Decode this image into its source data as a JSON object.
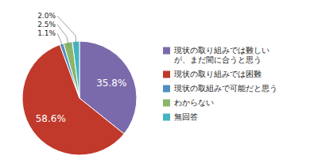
{
  "chart_data": {
    "type": "pie",
    "categories": [
      "現状の取り組みでは難しい\nが、まだ間に合うと思う",
      "現状の取り組みでは困難",
      "現状の取組みで可能だと思う",
      "わからない",
      "無回答"
    ],
    "values": [
      35.8,
      58.6,
      1.1,
      2.5,
      2.0
    ],
    "value_labels": [
      "35.8%",
      "58.6%",
      "1.1%",
      "2.5%",
      "2.0%"
    ],
    "colors": [
      "#7b6aab",
      "#c0392b",
      "#4f8fc0",
      "#8ab56b",
      "#43b5c0"
    ],
    "data_labels": true,
    "legend": "right"
  }
}
